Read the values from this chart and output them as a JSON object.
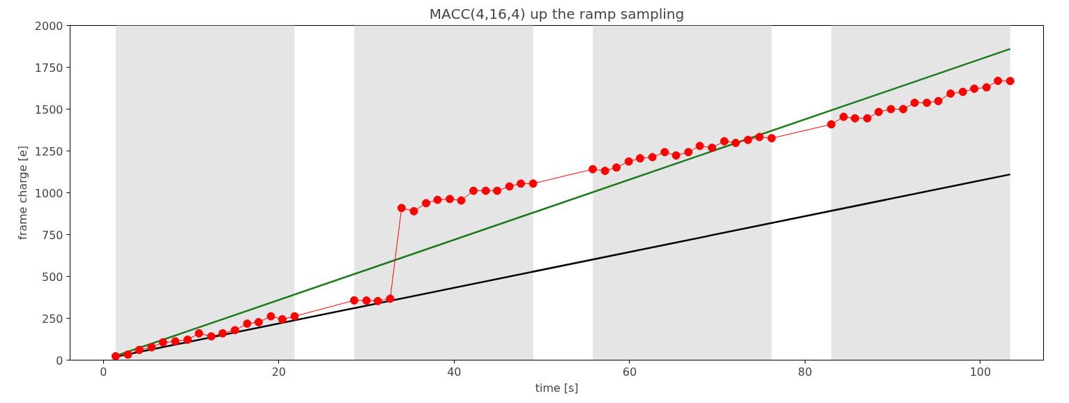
{
  "chart_data": {
    "type": "line",
    "title": "MACC(4,16,4) up the ramp sampling",
    "xlabel": "time [s]",
    "ylabel": "frame charge [e]",
    "xlim": [
      -3.8,
      107.2
    ],
    "ylim": [
      0,
      2000
    ],
    "xticks": [
      0,
      20,
      40,
      60,
      80,
      100
    ],
    "yticks": [
      0,
      250,
      500,
      750,
      1000,
      1250,
      1500,
      1750,
      2000
    ],
    "grid": false,
    "bands": [
      {
        "axis": "x",
        "from": 1.4,
        "to": 21.8,
        "color": "#e5e5e5"
      },
      {
        "axis": "x",
        "from": 28.6,
        "to": 49.0,
        "color": "#e5e5e5"
      },
      {
        "axis": "x",
        "from": 55.8,
        "to": 76.2,
        "color": "#e5e5e5"
      },
      {
        "axis": "x",
        "from": 83.0,
        "to": 103.4,
        "color": "#e5e5e5"
      }
    ],
    "series": [
      {
        "color": "#000000",
        "marker": "none",
        "x": [
          1.4,
          103.4
        ],
        "values": [
          20,
          1110
        ]
      },
      {
        "color": "#1a7a1a",
        "marker": "none",
        "x": [
          1.4,
          103.4
        ],
        "values": [
          25,
          1860
        ]
      },
      {
        "color": "#ff0000",
        "marker": "circle",
        "x": [
          1.4,
          2.8,
          4.1,
          5.5,
          6.8,
          8.2,
          9.6,
          10.9,
          12.3,
          13.6,
          15.0,
          16.4,
          17.7,
          19.1,
          20.4,
          21.8,
          28.6,
          30.0,
          31.3,
          32.7,
          34.0,
          35.4,
          36.8,
          38.1,
          39.5,
          40.8,
          42.2,
          43.6,
          44.9,
          46.3,
          47.6,
          49.0,
          55.8,
          57.2,
          58.5,
          59.9,
          61.2,
          62.6,
          64.0,
          65.3,
          66.7,
          68.0,
          69.4,
          70.8,
          72.1,
          73.5,
          74.8,
          76.2,
          83.0,
          84.4,
          85.7,
          87.1,
          88.4,
          89.8,
          91.2,
          92.5,
          93.9,
          95.2,
          96.6,
          98.0,
          99.3,
          100.7,
          102.0,
          103.4
        ],
        "values": [
          23,
          33,
          61,
          77,
          106,
          112,
          122,
          160,
          142,
          160,
          179,
          218,
          227,
          262,
          244,
          262,
          357,
          356,
          353,
          367,
          909,
          890,
          938,
          958,
          963,
          954,
          1012,
          1012,
          1012,
          1038,
          1055,
          1055,
          1141,
          1131,
          1151,
          1187,
          1206,
          1213,
          1243,
          1223,
          1243,
          1280,
          1269,
          1308,
          1298,
          1316,
          1333,
          1326,
          1409,
          1454,
          1445,
          1445,
          1483,
          1500,
          1500,
          1538,
          1538,
          1548,
          1593,
          1603,
          1622,
          1630,
          1669,
          1668
        ]
      }
    ]
  }
}
